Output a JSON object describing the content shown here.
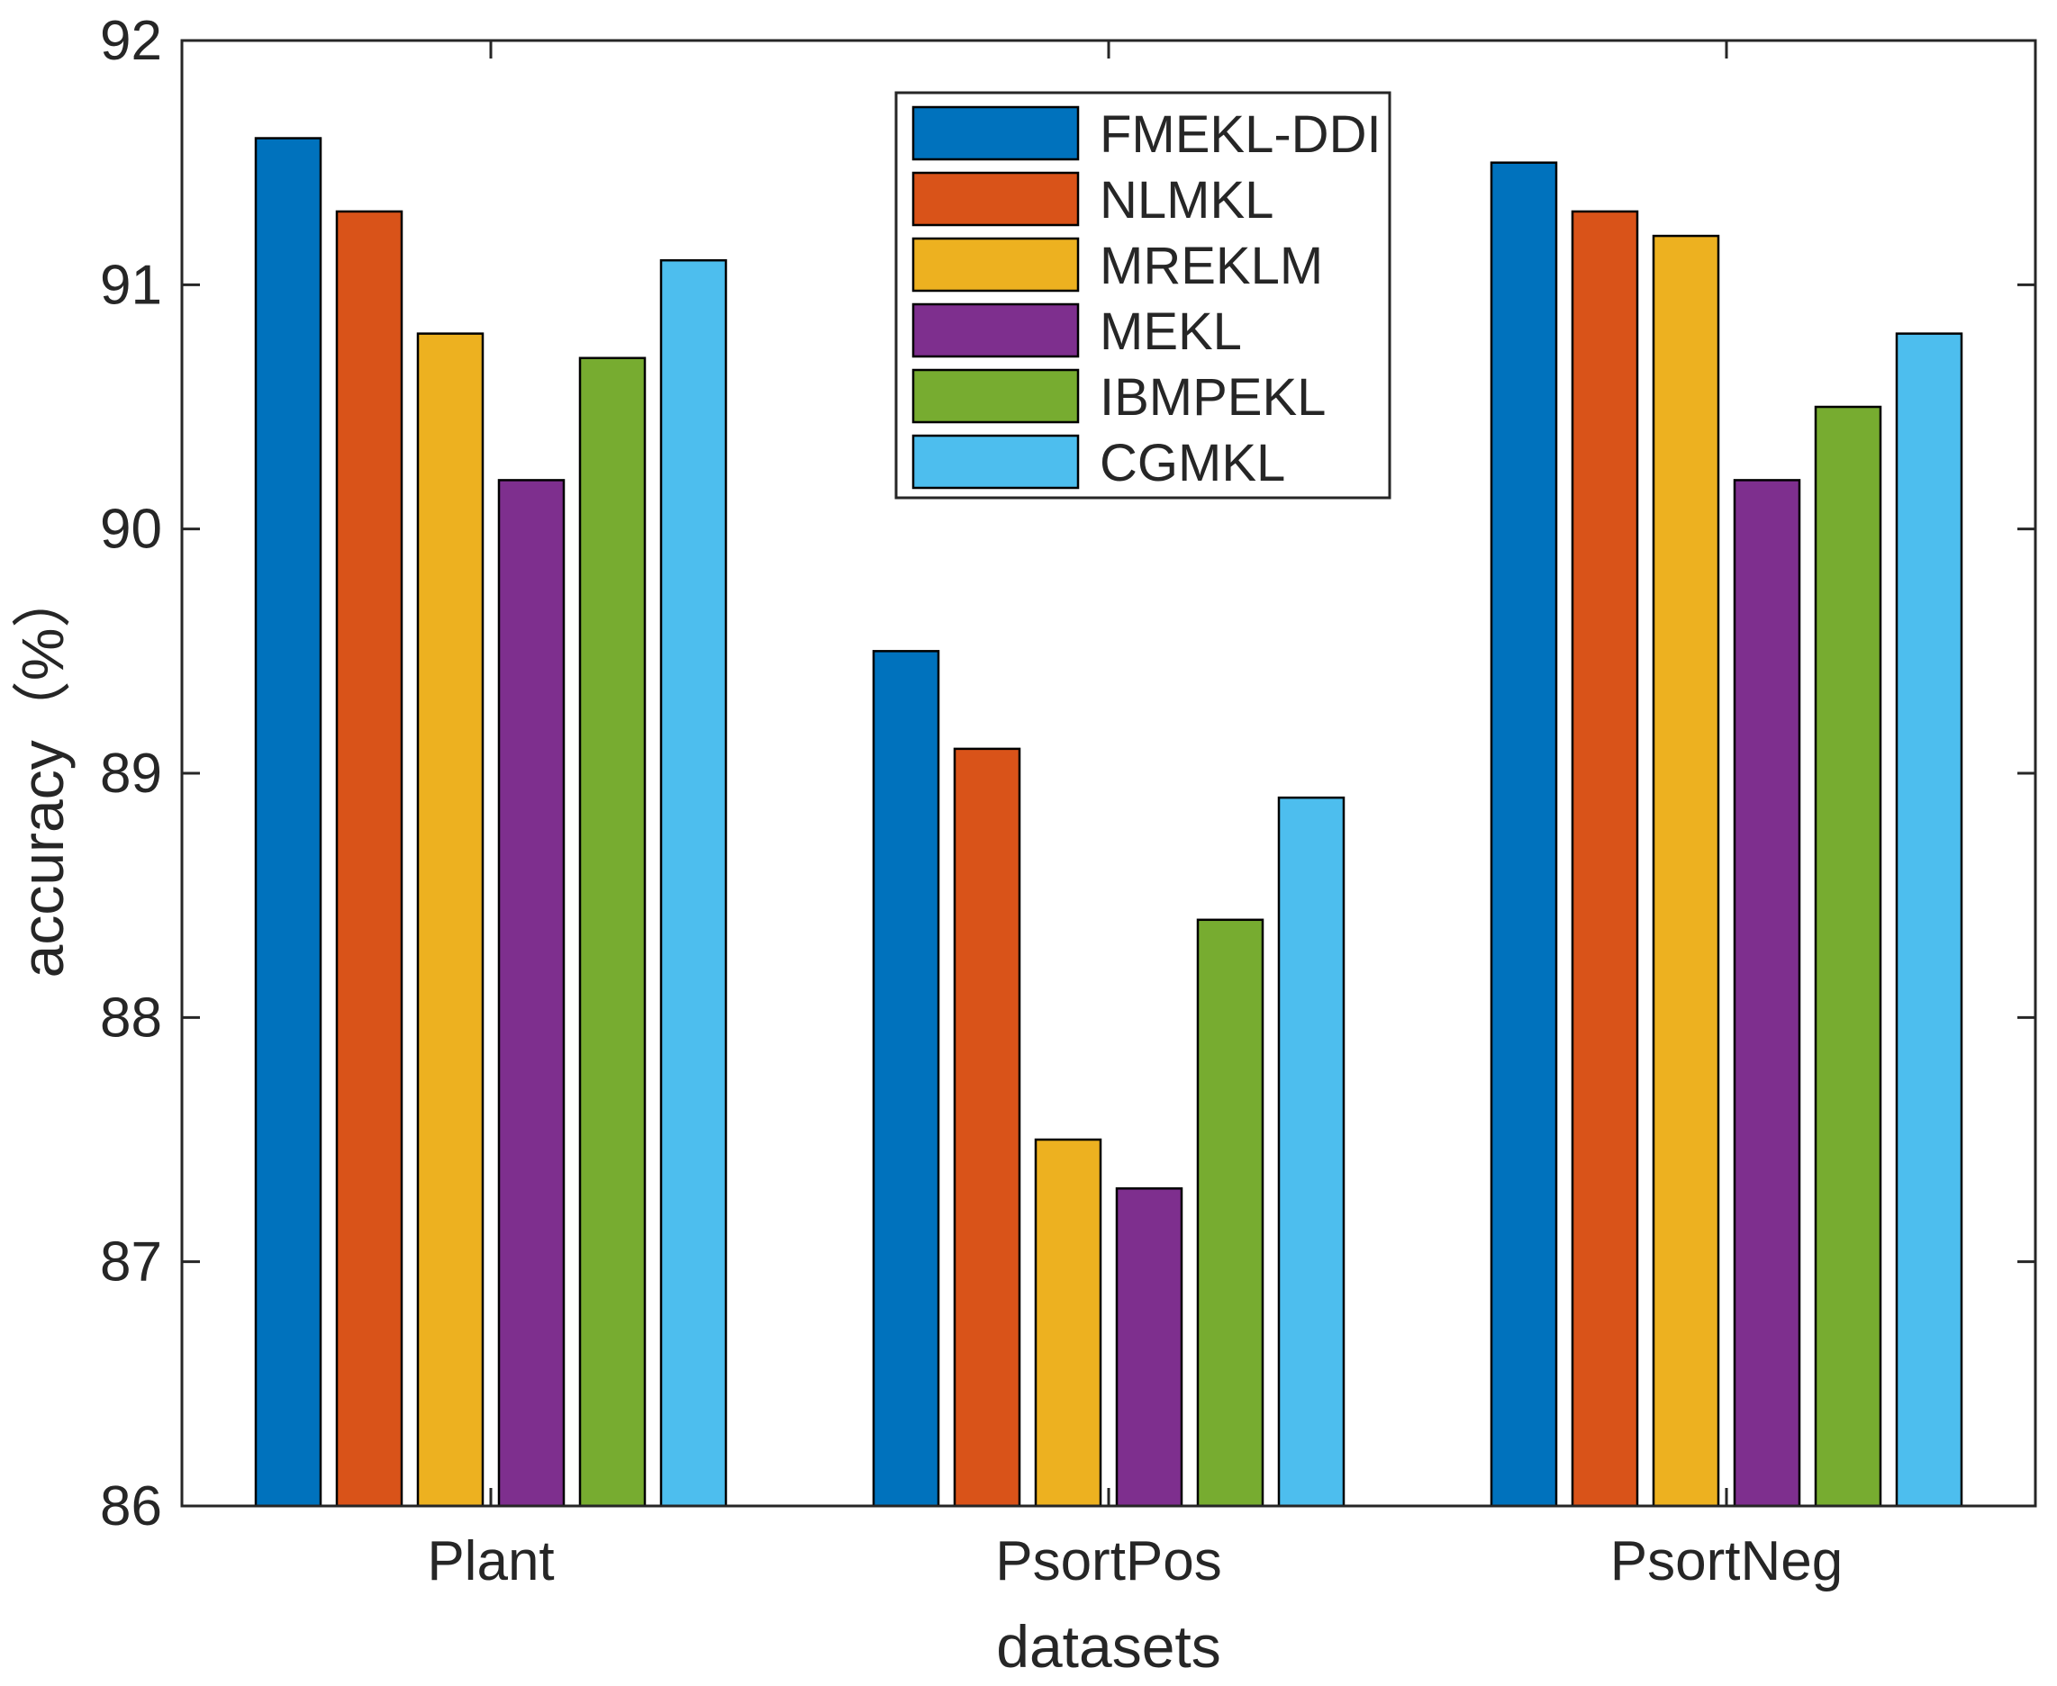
{
  "chart_data": {
    "type": "bar",
    "title": "",
    "xlabel": "datasets",
    "ylabel": "accuracy（%）",
    "categories": [
      "Plant",
      "PsortPos",
      "PsortNeg"
    ],
    "ylim": [
      86,
      92
    ],
    "yticks": [
      "86",
      "87",
      "88",
      "89",
      "90",
      "91",
      "92"
    ],
    "grid": false,
    "legend_position": "top-center",
    "series": [
      {
        "name": "FMEKL-DDI",
        "color": "#0072BD",
        "values": [
          91.6,
          89.5,
          91.5
        ]
      },
      {
        "name": "NLMKL",
        "color": "#D95319",
        "values": [
          91.3,
          89.1,
          91.3
        ]
      },
      {
        "name": "MREKLM",
        "color": "#EDB120",
        "values": [
          90.8,
          87.5,
          91.2
        ]
      },
      {
        "name": "MEKL",
        "color": "#7E2F8E",
        "values": [
          90.2,
          87.3,
          90.2
        ]
      },
      {
        "name": "IBMPEKL",
        "color": "#77AC30",
        "values": [
          90.7,
          88.4,
          90.5
        ]
      },
      {
        "name": "CGMKL",
        "color": "#4DBEEE",
        "values": [
          91.1,
          88.9,
          90.8
        ]
      }
    ]
  }
}
